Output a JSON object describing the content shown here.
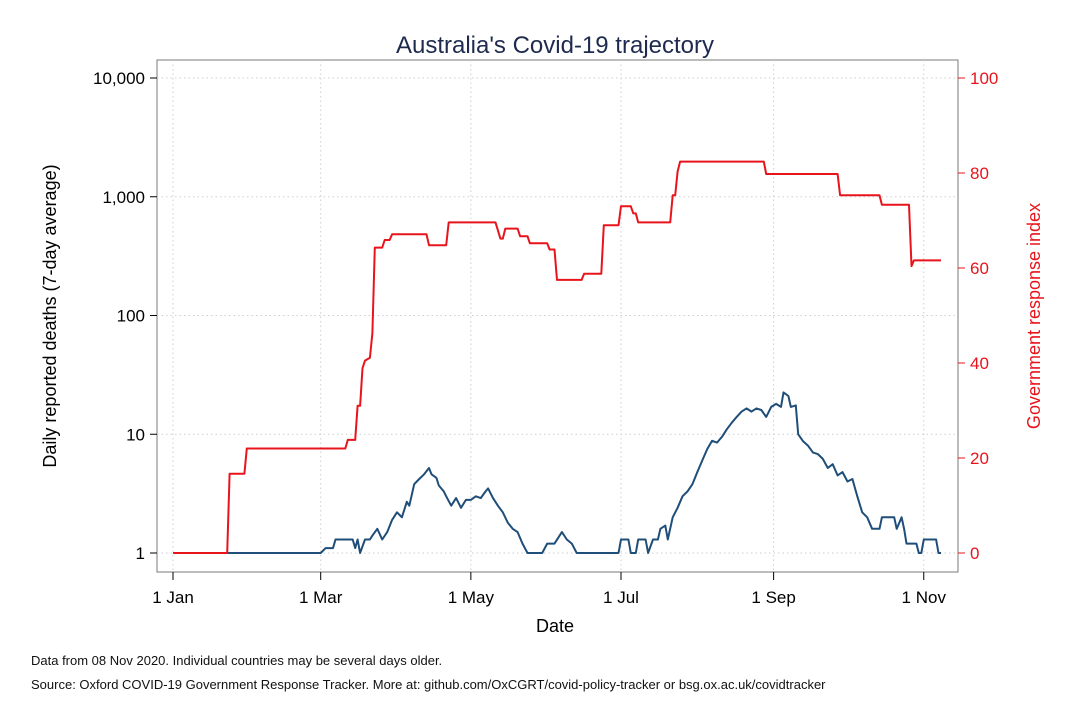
{
  "chart_data": {
    "type": "line",
    "title": "Australia's Covid-19 trajectory",
    "xlabel": "Date",
    "ylabel_left": "Daily reported deaths (7-day average)",
    "ylabel_right": "Government response index",
    "x_ticks": [
      "1 Jan",
      "1 Mar",
      "1 May",
      "1 Jul",
      "1 Sep",
      "1 Nov"
    ],
    "x_tick_dates": [
      "2020-01-01",
      "2020-03-01",
      "2020-05-01",
      "2020-07-01",
      "2020-09-01",
      "2020-11-01"
    ],
    "x_range": [
      "2020-01-01",
      "2020-11-08"
    ],
    "y_left": {
      "scale": "log",
      "ticks": [
        1,
        10,
        100,
        1000,
        10000
      ],
      "tick_labels": [
        "1",
        "10",
        "100",
        "1,000",
        "10,000"
      ],
      "ylim": [
        1,
        10000
      ]
    },
    "y_right": {
      "scale": "linear",
      "ticks": [
        0,
        20,
        40,
        60,
        80,
        100
      ],
      "tick_labels": [
        "0",
        "20",
        "40",
        "60",
        "80",
        "100"
      ],
      "ylim": [
        0,
        100
      ]
    },
    "grid": true,
    "colors": {
      "deaths": "#1f4e79",
      "response": "#e8141c",
      "axis_left": "#000000",
      "axis_right": "#e8141c",
      "title": "#1e2b4e"
    },
    "series": [
      {
        "axis": "left",
        "points": [
          [
            "2020-01-01",
            1
          ],
          [
            "2020-03-01",
            1
          ],
          [
            "2020-03-03",
            1.1
          ],
          [
            "2020-03-06",
            1.1
          ],
          [
            "2020-03-07",
            1.3
          ],
          [
            "2020-03-14",
            1.3
          ],
          [
            "2020-03-15",
            1.1
          ],
          [
            "2020-03-16",
            1.3
          ],
          [
            "2020-03-17",
            1.0
          ],
          [
            "2020-03-19",
            1.3
          ],
          [
            "2020-03-21",
            1.3
          ],
          [
            "2020-03-22",
            1.4
          ],
          [
            "2020-03-24",
            1.6
          ],
          [
            "2020-03-26",
            1.3
          ],
          [
            "2020-03-28",
            1.5
          ],
          [
            "2020-03-30",
            1.9
          ],
          [
            "2020-04-01",
            2.2
          ],
          [
            "2020-04-03",
            2.0
          ],
          [
            "2020-04-05",
            2.7
          ],
          [
            "2020-04-06",
            2.5
          ],
          [
            "2020-04-08",
            3.8
          ],
          [
            "2020-04-10",
            4.2
          ],
          [
            "2020-04-12",
            4.6
          ],
          [
            "2020-04-14",
            5.2
          ],
          [
            "2020-04-15",
            4.6
          ],
          [
            "2020-04-17",
            4.3
          ],
          [
            "2020-04-18",
            3.7
          ],
          [
            "2020-04-20",
            3.3
          ],
          [
            "2020-04-21",
            3.0
          ],
          [
            "2020-04-23",
            2.5
          ],
          [
            "2020-04-25",
            2.9
          ],
          [
            "2020-04-27",
            2.4
          ],
          [
            "2020-04-29",
            2.8
          ],
          [
            "2020-05-01",
            2.8
          ],
          [
            "2020-05-03",
            3.0
          ],
          [
            "2020-05-05",
            2.9
          ],
          [
            "2020-05-07",
            3.3
          ],
          [
            "2020-05-08",
            3.5
          ],
          [
            "2020-05-10",
            2.9
          ],
          [
            "2020-05-12",
            2.5
          ],
          [
            "2020-05-14",
            2.2
          ],
          [
            "2020-05-16",
            1.8
          ],
          [
            "2020-05-18",
            1.6
          ],
          [
            "2020-05-20",
            1.5
          ],
          [
            "2020-05-22",
            1.2
          ],
          [
            "2020-05-24",
            1.0
          ],
          [
            "2020-05-30",
            1.0
          ],
          [
            "2020-06-01",
            1.2
          ],
          [
            "2020-06-04",
            1.2
          ],
          [
            "2020-06-07",
            1.5
          ],
          [
            "2020-06-09",
            1.3
          ],
          [
            "2020-06-11",
            1.2
          ],
          [
            "2020-06-13",
            1.0
          ],
          [
            "2020-06-30",
            1.0
          ],
          [
            "2020-07-01",
            1.3
          ],
          [
            "2020-07-04",
            1.3
          ],
          [
            "2020-07-05",
            1.0
          ],
          [
            "2020-07-07",
            1.0
          ],
          [
            "2020-07-08",
            1.3
          ],
          [
            "2020-07-11",
            1.3
          ],
          [
            "2020-07-12",
            1.0
          ],
          [
            "2020-07-14",
            1.3
          ],
          [
            "2020-07-16",
            1.3
          ],
          [
            "2020-07-17",
            1.6
          ],
          [
            "2020-07-19",
            1.7
          ],
          [
            "2020-07-20",
            1.3
          ],
          [
            "2020-07-22",
            2.0
          ],
          [
            "2020-07-24",
            2.4
          ],
          [
            "2020-07-26",
            3.0
          ],
          [
            "2020-07-28",
            3.3
          ],
          [
            "2020-07-30",
            3.8
          ],
          [
            "2020-08-01",
            4.8
          ],
          [
            "2020-08-03",
            6.0
          ],
          [
            "2020-08-05",
            7.5
          ],
          [
            "2020-08-07",
            8.8
          ],
          [
            "2020-08-09",
            8.5
          ],
          [
            "2020-08-11",
            9.5
          ],
          [
            "2020-08-13",
            11.0
          ],
          [
            "2020-08-15",
            12.5
          ],
          [
            "2020-08-17",
            14.0
          ],
          [
            "2020-08-19",
            15.5
          ],
          [
            "2020-08-21",
            16.5
          ],
          [
            "2020-08-23",
            15.5
          ],
          [
            "2020-08-25",
            16.5
          ],
          [
            "2020-08-27",
            16.0
          ],
          [
            "2020-08-29",
            14.0
          ],
          [
            "2020-08-31",
            17.0
          ],
          [
            "2020-09-02",
            18.0
          ],
          [
            "2020-09-04",
            17.0
          ],
          [
            "2020-09-05",
            22.5
          ],
          [
            "2020-09-07",
            21.0
          ],
          [
            "2020-09-08",
            17.0
          ],
          [
            "2020-09-10",
            17.5
          ],
          [
            "2020-09-11",
            10.0
          ],
          [
            "2020-09-13",
            8.7
          ],
          [
            "2020-09-15",
            8.0
          ],
          [
            "2020-09-17",
            7.0
          ],
          [
            "2020-09-19",
            6.8
          ],
          [
            "2020-09-21",
            6.2
          ],
          [
            "2020-09-23",
            5.2
          ],
          [
            "2020-09-25",
            5.6
          ],
          [
            "2020-09-27",
            4.5
          ],
          [
            "2020-09-29",
            4.8
          ],
          [
            "2020-10-01",
            4.0
          ],
          [
            "2020-10-03",
            4.2
          ],
          [
            "2020-10-05",
            3.0
          ],
          [
            "2020-10-07",
            2.2
          ],
          [
            "2020-10-09",
            2.0
          ],
          [
            "2020-10-11",
            1.6
          ],
          [
            "2020-10-14",
            1.6
          ],
          [
            "2020-10-15",
            2.0
          ],
          [
            "2020-10-20",
            2.0
          ],
          [
            "2020-10-21",
            1.6
          ],
          [
            "2020-10-23",
            2.0
          ],
          [
            "2020-10-24",
            1.6
          ],
          [
            "2020-10-25",
            1.2
          ],
          [
            "2020-10-29",
            1.2
          ],
          [
            "2020-10-30",
            1.0
          ],
          [
            "2020-10-31",
            1.0
          ],
          [
            "2020-11-01",
            1.3
          ],
          [
            "2020-11-06",
            1.3
          ],
          [
            "2020-11-07",
            1.0
          ],
          [
            "2020-11-08",
            1.0
          ]
        ]
      },
      {
        "axis": "right",
        "points": [
          [
            "2020-01-01",
            0
          ],
          [
            "2020-01-23",
            0
          ],
          [
            "2020-01-24",
            16.7
          ],
          [
            "2020-01-30",
            16.7
          ],
          [
            "2020-01-31",
            22.0
          ],
          [
            "2020-03-11",
            22.0
          ],
          [
            "2020-03-12",
            23.8
          ],
          [
            "2020-03-15",
            23.8
          ],
          [
            "2020-03-16",
            31.0
          ],
          [
            "2020-03-17",
            31.0
          ],
          [
            "2020-03-18",
            38.9
          ],
          [
            "2020-03-19",
            40.5
          ],
          [
            "2020-03-21",
            41.1
          ],
          [
            "2020-03-22",
            46.3
          ],
          [
            "2020-03-23",
            64.3
          ],
          [
            "2020-03-26",
            64.3
          ],
          [
            "2020-03-27",
            65.9
          ],
          [
            "2020-03-29",
            65.9
          ],
          [
            "2020-03-30",
            67.1
          ],
          [
            "2020-04-13",
            67.1
          ],
          [
            "2020-04-14",
            64.8
          ],
          [
            "2020-04-21",
            64.8
          ],
          [
            "2020-04-22",
            69.6
          ],
          [
            "2020-05-11",
            69.6
          ],
          [
            "2020-05-13",
            66.2
          ],
          [
            "2020-05-14",
            66.2
          ],
          [
            "2020-05-15",
            68.3
          ],
          [
            "2020-05-20",
            68.3
          ],
          [
            "2020-05-21",
            66.7
          ],
          [
            "2020-05-24",
            66.7
          ],
          [
            "2020-05-25",
            65.2
          ],
          [
            "2020-06-01",
            65.2
          ],
          [
            "2020-06-02",
            63.9
          ],
          [
            "2020-06-04",
            63.9
          ],
          [
            "2020-06-05",
            57.5
          ],
          [
            "2020-06-15",
            57.5
          ],
          [
            "2020-06-16",
            58.8
          ],
          [
            "2020-06-23",
            58.8
          ],
          [
            "2020-06-24",
            69.0
          ],
          [
            "2020-06-30",
            69.0
          ],
          [
            "2020-07-01",
            73.0
          ],
          [
            "2020-07-05",
            73.0
          ],
          [
            "2020-07-06",
            71.5
          ],
          [
            "2020-07-07",
            71.5
          ],
          [
            "2020-07-08",
            69.6
          ],
          [
            "2020-07-21",
            69.6
          ],
          [
            "2020-07-22",
            75.3
          ],
          [
            "2020-07-23",
            75.3
          ],
          [
            "2020-07-24",
            80.3
          ],
          [
            "2020-07-25",
            82.4
          ],
          [
            "2020-08-28",
            82.4
          ],
          [
            "2020-08-29",
            79.8
          ],
          [
            "2020-09-27",
            79.8
          ],
          [
            "2020-09-28",
            75.3
          ],
          [
            "2020-10-14",
            75.3
          ],
          [
            "2020-10-15",
            73.3
          ],
          [
            "2020-10-26",
            73.3
          ],
          [
            "2020-10-27",
            60.4
          ],
          [
            "2020-10-28",
            61.6
          ],
          [
            "2020-11-08",
            61.6
          ]
        ]
      }
    ]
  },
  "notes": {
    "line1": "Data from 08 Nov 2020. Individual countries may be several days older.",
    "line2": "Source: Oxford COVID-19 Government Response Tracker. More at: github.com/OxCGRT/covid-policy-tracker or bsg.ox.ac.uk/covidtracker"
  }
}
